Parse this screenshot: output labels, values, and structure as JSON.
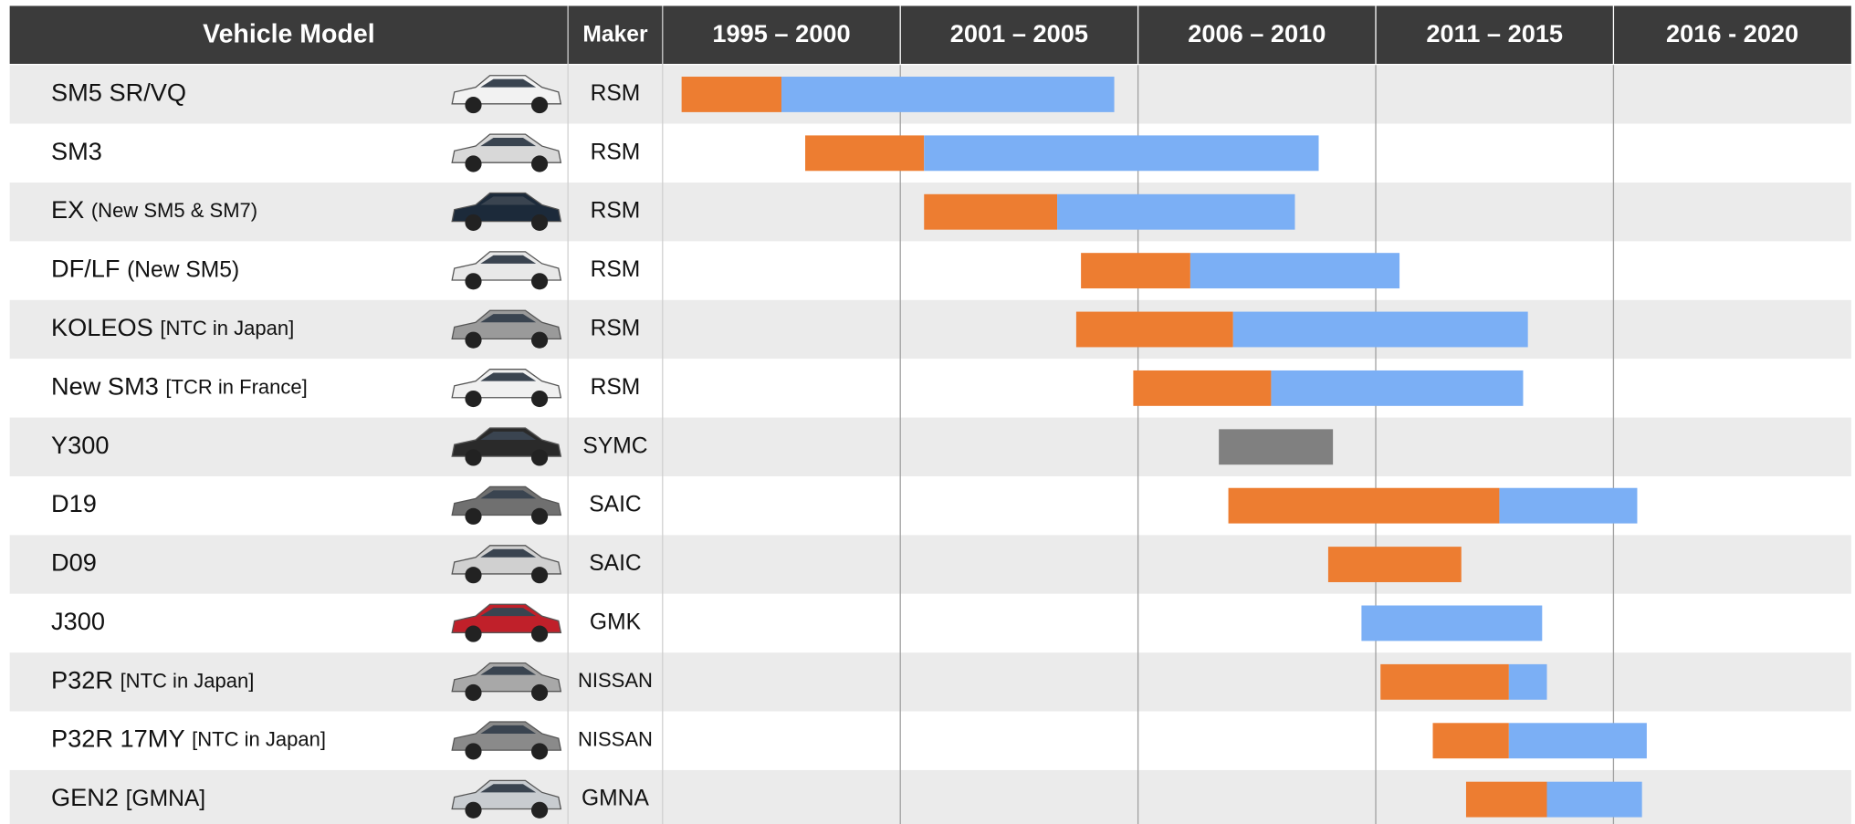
{
  "chart_data": {
    "type": "timeline",
    "headers": {
      "model": "Vehicle Model",
      "maker": "Maker"
    },
    "periods": [
      "1995 – 2000",
      "2001 – 2005",
      "2006 – 2010",
      "2011 – 2015",
      "2016 - 2020"
    ],
    "xlim": [
      1996,
      2021
    ],
    "xticks": [
      2001,
      2006,
      2011,
      2016
    ],
    "rows": [
      {
        "model": "SM5 SR/VQ",
        "maker": "RSM",
        "segments": [
          {
            "color": "#ed7d31",
            "start": 1996.4,
            "end": 1998.5
          },
          {
            "color": "#7baff5",
            "start": 1998.5,
            "end": 2005.5
          }
        ]
      },
      {
        "model": "SM3",
        "maker": "RSM",
        "segments": [
          {
            "color": "#ed7d31",
            "start": 1999.0,
            "end": 2001.5
          },
          {
            "color": "#7baff5",
            "start": 2001.5,
            "end": 2009.8
          }
        ]
      },
      {
        "model": "EX",
        "note": "(New SM5 & SM7)",
        "maker": "RSM",
        "segments": [
          {
            "color": "#ed7d31",
            "start": 2001.5,
            "end": 2004.3
          },
          {
            "color": "#7baff5",
            "start": 2004.3,
            "end": 2009.3
          }
        ]
      },
      {
        "model": "DF/LF",
        "note": "(New SM5)",
        "maker": "RSM",
        "segments": [
          {
            "color": "#ed7d31",
            "start": 2004.8,
            "end": 2007.1
          },
          {
            "color": "#7baff5",
            "start": 2007.1,
            "end": 2011.5
          }
        ]
      },
      {
        "model": "KOLEOS",
        "note": "[NTC in Japan]",
        "maker": "RSM",
        "segments": [
          {
            "color": "#ed7d31",
            "start": 2004.7,
            "end": 2008.0
          },
          {
            "color": "#7baff5",
            "start": 2008.0,
            "end": 2014.2
          }
        ]
      },
      {
        "model": "New SM3",
        "note": "[TCR in France]",
        "maker": "RSM",
        "segments": [
          {
            "color": "#ed7d31",
            "start": 2005.9,
            "end": 2008.8
          },
          {
            "color": "#7baff5",
            "start": 2008.8,
            "end": 2014.1
          }
        ]
      },
      {
        "model": "Y300",
        "maker": "SYMC",
        "segments": [
          {
            "color": "#808080",
            "start": 2007.7,
            "end": 2010.1
          }
        ]
      },
      {
        "model": "D19",
        "maker": "SAIC",
        "segments": [
          {
            "color": "#ed7d31",
            "start": 2007.9,
            "end": 2013.6
          },
          {
            "color": "#7baff5",
            "start": 2013.6,
            "end": 2016.5
          }
        ]
      },
      {
        "model": "D09",
        "maker": "SAIC",
        "segments": [
          {
            "color": "#ed7d31",
            "start": 2010.0,
            "end": 2012.8
          }
        ]
      },
      {
        "model": "J300",
        "maker": "GMK",
        "segments": [
          {
            "color": "#7baff5",
            "start": 2010.7,
            "end": 2014.5
          }
        ]
      },
      {
        "model": "P32R",
        "note": "[NTC in Japan]",
        "maker": "NISSAN",
        "segments": [
          {
            "color": "#ed7d31",
            "start": 2011.1,
            "end": 2013.8
          },
          {
            "color": "#7baff5",
            "start": 2013.8,
            "end": 2014.6
          }
        ]
      },
      {
        "model": "P32R 17MY",
        "note": "[NTC in Japan]",
        "maker": "NISSAN",
        "segments": [
          {
            "color": "#ed7d31",
            "start": 2012.2,
            "end": 2013.8
          },
          {
            "color": "#7baff5",
            "start": 2013.8,
            "end": 2016.7
          }
        ]
      },
      {
        "model": "GEN2",
        "note": "[GMNA]",
        "maker": "GMNA",
        "segments": [
          {
            "color": "#ed7d31",
            "start": 2012.9,
            "end": 2014.6
          },
          {
            "color": "#7baff5",
            "start": 2014.6,
            "end": 2016.6
          }
        ]
      }
    ]
  }
}
